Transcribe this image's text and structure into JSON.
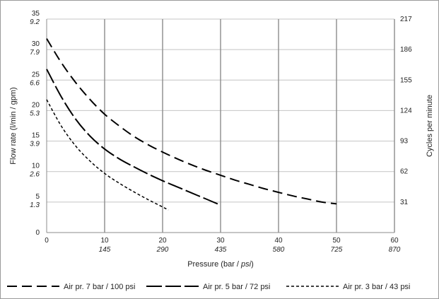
{
  "chart_data": {
    "type": "line",
    "xlabel": "Pressure (bar / ",
    "xlabel_italic": "psi",
    "xlabel_end": ")",
    "ylabel_left": "Flow rate (l/min / gpm)",
    "ylabel_right": "Cycles per minute",
    "xlim": [
      0,
      60
    ],
    "ylim": [
      0,
      35
    ],
    "grid": "vertical",
    "legend_position": "bottom",
    "x_ticks": [
      {
        "bar": "0",
        "psi": ""
      },
      {
        "bar": "10",
        "psi": "145"
      },
      {
        "bar": "20",
        "psi": "290"
      },
      {
        "bar": "30",
        "psi": "435"
      },
      {
        "bar": "40",
        "psi": "580"
      },
      {
        "bar": "50",
        "psi": "725"
      },
      {
        "bar": "60",
        "psi": "870"
      }
    ],
    "y_ticks_left": [
      {
        "v": 0,
        "lpm": "0",
        "gpm": ""
      },
      {
        "v": 5,
        "lpm": "5",
        "gpm": "1.3"
      },
      {
        "v": 10,
        "lpm": "10",
        "gpm": "2.6"
      },
      {
        "v": 15,
        "lpm": "15",
        "gpm": "3.9"
      },
      {
        "v": 20,
        "lpm": "20",
        "gpm": "5.3"
      },
      {
        "v": 25,
        "lpm": "25",
        "gpm": "6.6"
      },
      {
        "v": 30,
        "lpm": "30",
        "gpm": "7.9"
      },
      {
        "v": 35,
        "lpm": "35",
        "gpm": "9.2"
      }
    ],
    "y_ticks_right": [
      {
        "v": 5,
        "label": "31"
      },
      {
        "v": 10,
        "label": "62"
      },
      {
        "v": 15,
        "label": "93"
      },
      {
        "v": 20,
        "label": "124"
      },
      {
        "v": 25,
        "label": "155"
      },
      {
        "v": 30,
        "label": "186"
      },
      {
        "v": 35,
        "label": "217"
      }
    ],
    "series": [
      {
        "name": "Air pr. 7 bar / 100 psi",
        "dash": "long",
        "x": [
          0,
          2.5,
          5,
          7.5,
          10,
          12.5,
          15,
          17.5,
          20,
          22.5,
          25,
          27.5,
          30,
          32.5,
          35,
          37.5,
          40,
          42.5,
          45,
          47.5,
          50
        ],
        "y": [
          31.8,
          27.9,
          24.6,
          21.8,
          19.4,
          17.5,
          15.8,
          14.4,
          13.2,
          12.1,
          11.1,
          10.2,
          9.4,
          8.6,
          7.9,
          7.2,
          6.6,
          6.0,
          5.5,
          5.0,
          4.7
        ]
      },
      {
        "name": "Air pr. 5 bar / 72 psi",
        "dash": "medium",
        "x": [
          0,
          2.5,
          5,
          7.5,
          10,
          12.5,
          15,
          17.5,
          20,
          22.5,
          25,
          27.5,
          30
        ],
        "y": [
          26.8,
          22.3,
          18.6,
          15.8,
          13.7,
          12.1,
          10.8,
          9.6,
          8.5,
          7.5,
          6.5,
          5.5,
          4.5
        ]
      },
      {
        "name": "Air pr. 3 bar / 43 psi",
        "dash": "short",
        "x": [
          0,
          2.5,
          5,
          7.5,
          10,
          12.5,
          15,
          17.5,
          20,
          21
        ],
        "y": [
          21.8,
          17.5,
          14.2,
          11.7,
          9.7,
          8.1,
          6.7,
          5.4,
          4.2,
          3.7
        ]
      }
    ]
  }
}
